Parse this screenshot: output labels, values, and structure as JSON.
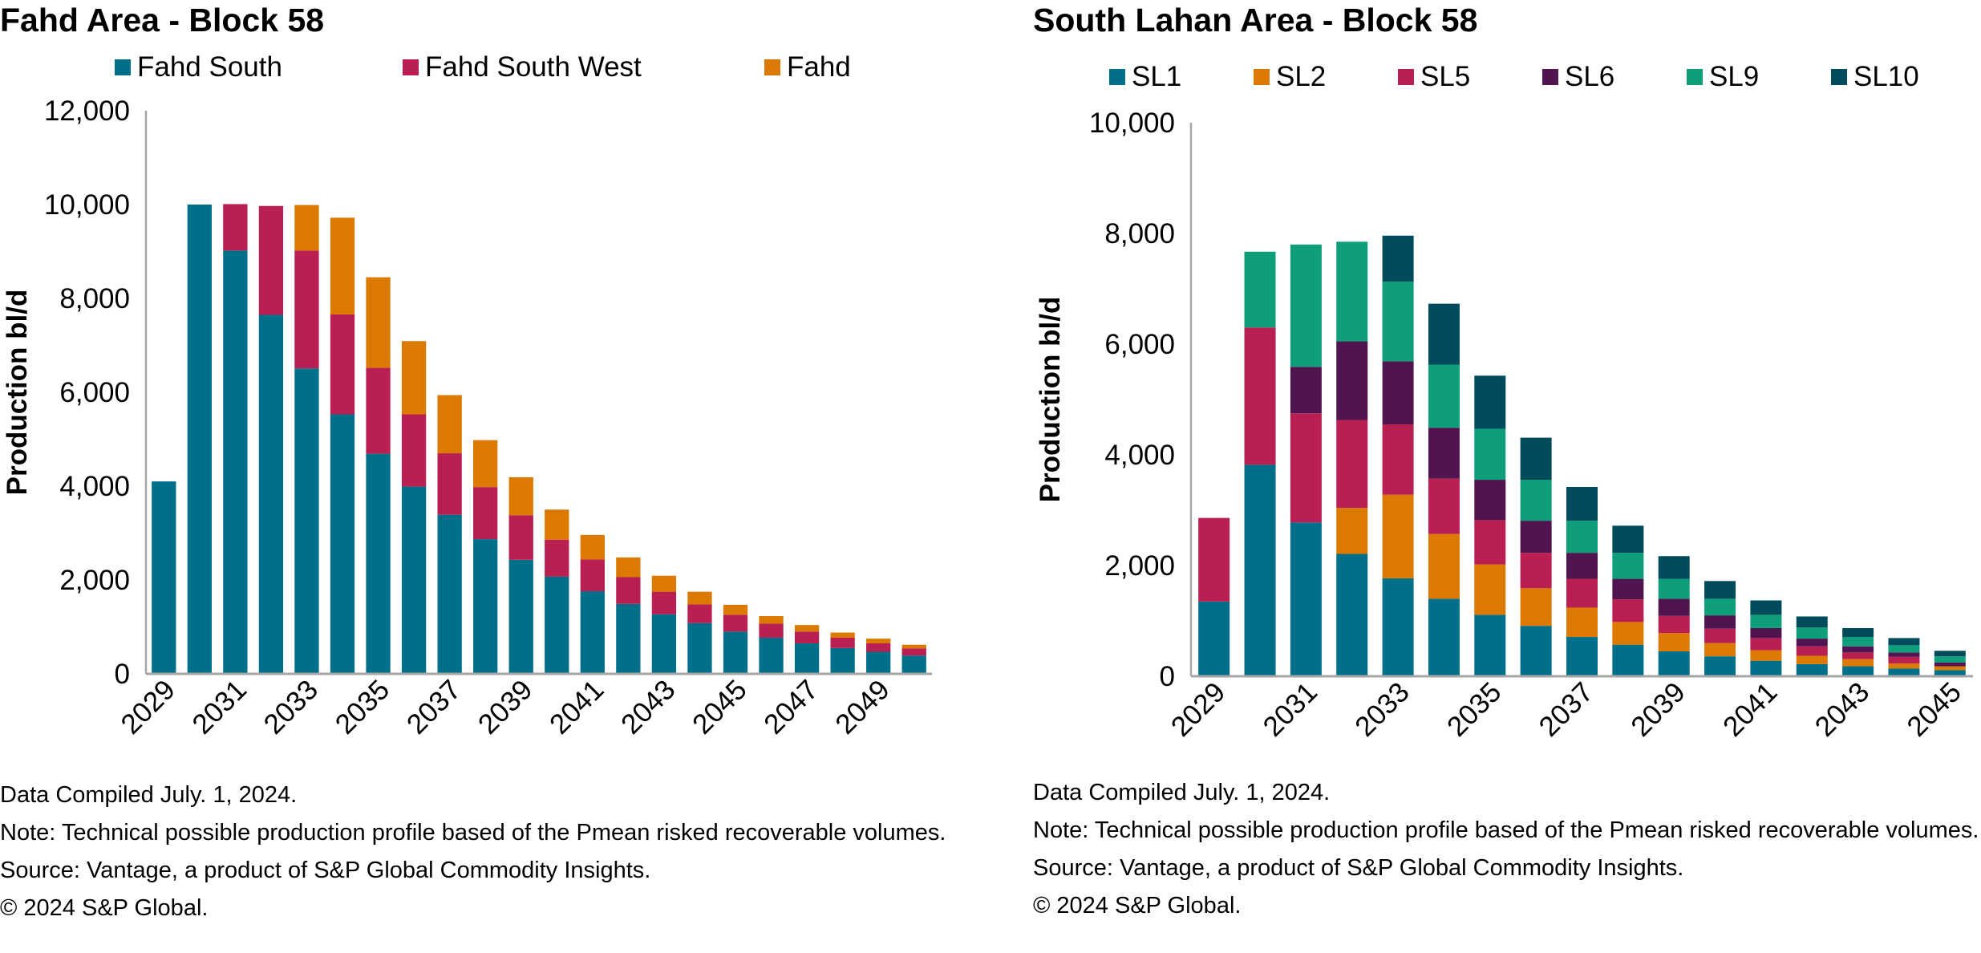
{
  "colors": {
    "teal": "#006F8A",
    "crimson": "#B91F51",
    "orange": "#DC7900",
    "purple": "#501551",
    "green": "#0E9F7A",
    "darkteal": "#004B5B",
    "axis": "#A6A6A6"
  },
  "left": {
    "title": "Fahd Area - Block 58",
    "legend": [
      "Fahd South",
      "Fahd South West",
      "Fahd"
    ],
    "notes": {
      "compiled": "Data Compiled July. 1, 2024.",
      "note": "Note: Technical possible production profile based of the Pmean risked recoverable volumes.",
      "source": "Source: Vantage, a product of S&P Global Commodity Insights.",
      "copyright": "© 2024 S&P Global."
    }
  },
  "right": {
    "title": "South Lahan Area - Block 58",
    "legend": [
      "SL1",
      "SL2",
      "SL5",
      "SL6",
      "SL9",
      "SL10"
    ],
    "notes": {
      "compiled": "Data Compiled July. 1, 2024.",
      "note": "Note: Technical possible production profile based of the Pmean risked recoverable volumes.",
      "source": "Source: Vantage, a product of S&P Global Commodity Insights.",
      "copyright": "© 2024 S&P Global."
    }
  },
  "chart_data": [
    {
      "type": "bar",
      "stacked": true,
      "title": "Fahd Area - Block 58",
      "xlabel": "",
      "ylabel": "Production bl/d",
      "ylim": [
        0,
        12000
      ],
      "yticks": [
        0,
        2000,
        4000,
        6000,
        8000,
        10000,
        12000
      ],
      "ytick_labels": [
        "0",
        "2,000",
        "4,000",
        "6,000",
        "8,000",
        "10,000",
        "12,000"
      ],
      "grid": false,
      "legend_position": "top",
      "categories": [
        "2029",
        "2030",
        "2031",
        "2032",
        "2033",
        "2034",
        "2035",
        "2036",
        "2037",
        "2038",
        "2039",
        "2040",
        "2041",
        "2042",
        "2043",
        "2044",
        "2045",
        "2046",
        "2047",
        "2048",
        "2049",
        "2050"
      ],
      "xtick_labels": [
        "2029",
        "2031",
        "2033",
        "2035",
        "2037",
        "2039",
        "2041",
        "2043",
        "2045",
        "2047",
        "2049"
      ],
      "series": [
        {
          "name": "Fahd South",
          "color": "#006F8A",
          "values": [
            4100,
            10000,
            9020,
            7650,
            6510,
            5530,
            4690,
            3990,
            3390,
            2870,
            2430,
            2070,
            1760,
            1490,
            1270,
            1080,
            900,
            770,
            650,
            550,
            470,
            390
          ]
        },
        {
          "name": "Fahd South West",
          "color": "#B91F51",
          "values": [
            0,
            0,
            990,
            2320,
            2510,
            2130,
            1830,
            1540,
            1310,
            1110,
            950,
            790,
            680,
            570,
            480,
            400,
            360,
            300,
            250,
            220,
            180,
            150
          ]
        },
        {
          "name": "Fahd",
          "color": "#DC7900",
          "values": [
            0,
            0,
            0,
            0,
            970,
            2060,
            1930,
            1560,
            1240,
            1000,
            810,
            640,
            520,
            420,
            340,
            270,
            210,
            160,
            140,
            110,
            100,
            80
          ]
        }
      ]
    },
    {
      "type": "bar",
      "stacked": true,
      "title": "South Lahan Area - Block 58",
      "xlabel": "",
      "ylabel": "Production bl/d",
      "ylim": [
        0,
        10000
      ],
      "yticks": [
        0,
        2000,
        4000,
        6000,
        8000,
        10000
      ],
      "ytick_labels": [
        "0",
        "2,000",
        "4,000",
        "6,000",
        "8,000",
        "10,000"
      ],
      "grid": false,
      "legend_position": "top",
      "categories": [
        "2029",
        "2030",
        "2031",
        "2032",
        "2033",
        "2034",
        "2035",
        "2036",
        "2037",
        "2038",
        "2039",
        "2040",
        "2041",
        "2042",
        "2043",
        "2044",
        "2045"
      ],
      "xtick_labels": [
        "2029",
        "2031",
        "2033",
        "2035",
        "2037",
        "2039",
        "2041",
        "2043",
        "2045"
      ],
      "series": [
        {
          "name": "SL1",
          "color": "#006F8A",
          "values": [
            1350,
            3820,
            2780,
            2210,
            1770,
            1400,
            1110,
            910,
            710,
            570,
            450,
            360,
            280,
            220,
            180,
            140,
            110
          ]
        },
        {
          "name": "SL2",
          "color": "#DC7900",
          "values": [
            0,
            0,
            0,
            830,
            1510,
            1170,
            910,
            680,
            530,
            410,
            330,
            240,
            190,
            150,
            130,
            90,
            70
          ]
        },
        {
          "name": "SL5",
          "color": "#B91F51",
          "values": [
            1510,
            2480,
            1970,
            1590,
            1270,
            1000,
            800,
            640,
            520,
            410,
            310,
            260,
            220,
            170,
            120,
            120,
            0
          ]
        },
        {
          "name": "SL6",
          "color": "#501551",
          "values": [
            0,
            0,
            840,
            1420,
            1140,
            920,
            730,
            580,
            470,
            370,
            310,
            240,
            180,
            140,
            110,
            80,
            70
          ]
        },
        {
          "name": "SL9",
          "color": "#0E9F7A",
          "values": [
            0,
            1370,
            2210,
            1800,
            1440,
            1140,
            920,
            740,
            580,
            470,
            360,
            300,
            240,
            200,
            170,
            130,
            110
          ]
        },
        {
          "name": "SL10",
          "color": "#004B5B",
          "values": [
            0,
            0,
            0,
            0,
            830,
            1100,
            960,
            760,
            610,
            490,
            410,
            320,
            260,
            200,
            160,
            130,
            100
          ]
        }
      ]
    }
  ]
}
